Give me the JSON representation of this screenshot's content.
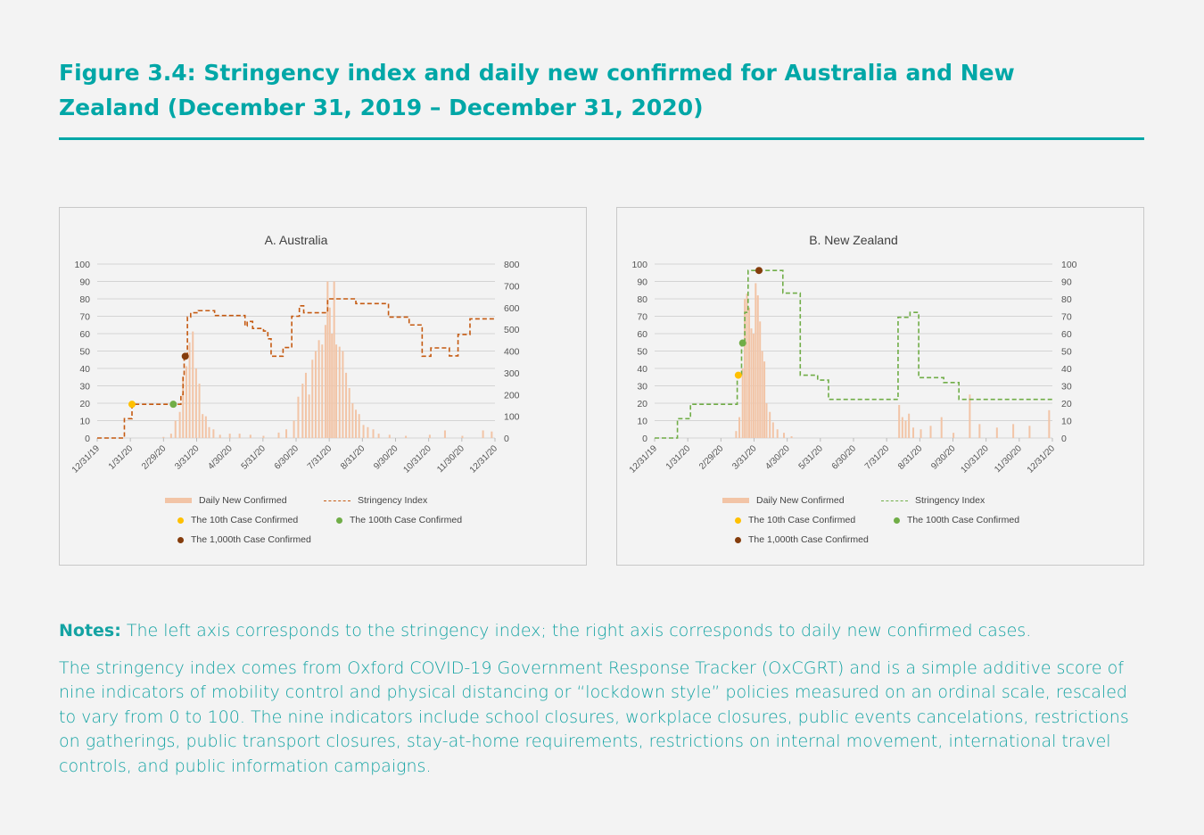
{
  "title": "Figure 3.4: Stringency index and daily new confirmed for Australia and New Zealand (December 31, 2019 – December 31, 2020)",
  "notes": {
    "label": "Notes:",
    "text": " The left axis corresponds to the stringency index; the right axis corresponds to daily new confirmed cases.",
    "paragraph": "The stringency index comes from Oxford COVID-19 Government Response Tracker (OxCGRT) and is a simple additive score of nine indicators of mobility control and physical distancing or “lockdown style” policies measured on an ordinal scale, rescaled to vary from 0 to 100. The nine indicators include school closures, workplace closures, public events cancelations, restrictions on gatherings, public transport closures, stay-at-home requirements, restrictions on internal movement, international travel controls, and public information campaigns."
  },
  "chart_data": [
    {
      "type": "bar+line",
      "title": "A. Australia",
      "x_ticks": [
        "12/31/19",
        "1/31/20",
        "2/29/20",
        "3/31/20",
        "4/30/20",
        "5/31/20",
        "6/30/20",
        "7/31/20",
        "8/31/20",
        "9/30/20",
        "10/31/20",
        "11/30/20",
        "12/31/20"
      ],
      "xlim": [
        "2019-12-31",
        "2020-12-31"
      ],
      "left_ylim": [
        0,
        100
      ],
      "left_ticks": [
        0,
        10,
        20,
        30,
        40,
        50,
        60,
        70,
        80,
        90,
        100
      ],
      "right_ylim": [
        0,
        800
      ],
      "right_ticks": [
        0,
        100,
        200,
        300,
        400,
        500,
        600,
        700,
        800
      ],
      "grid": true,
      "legend": [
        "Daily New Confirmed",
        "Stringency Index",
        "The 10th Case Confirmed",
        "The 100th Case Confirmed",
        "The 1,000th Case Confirmed"
      ],
      "colors": {
        "bars": "#f2c4a6",
        "line": "#c55a11",
        "case10": "#ffc000",
        "case100": "#70ad47",
        "case1000": "#843c0c"
      },
      "stringency_steps": [
        [
          "2019-12-31",
          0
        ],
        [
          "2020-01-25",
          11.1
        ],
        [
          "2020-02-01",
          19.4
        ],
        [
          "2020-03-17",
          25
        ],
        [
          "2020-03-19",
          36.1
        ],
        [
          "2020-03-20",
          47
        ],
        [
          "2020-03-23",
          69.5
        ],
        [
          "2020-03-26",
          72
        ],
        [
          "2020-04-02",
          73.2
        ],
        [
          "2020-04-17",
          70.4
        ],
        [
          "2020-05-15",
          64.4
        ],
        [
          "2020-05-17",
          67
        ],
        [
          "2020-05-22",
          63
        ],
        [
          "2020-06-01",
          61.5
        ],
        [
          "2020-06-05",
          57
        ],
        [
          "2020-06-08",
          47
        ],
        [
          "2020-06-19",
          52
        ],
        [
          "2020-06-27",
          70
        ],
        [
          "2020-07-04",
          76
        ],
        [
          "2020-07-08",
          72
        ],
        [
          "2020-07-30",
          80
        ],
        [
          "2020-08-25",
          77.3
        ],
        [
          "2020-09-24",
          69.5
        ],
        [
          "2020-10-13",
          65
        ],
        [
          "2020-10-25",
          47
        ],
        [
          "2020-11-02",
          51.8
        ],
        [
          "2020-11-19",
          47.2
        ],
        [
          "2020-11-27",
          59.5
        ],
        [
          "2020-12-08",
          68.5
        ],
        [
          "2020-12-31",
          68.5
        ]
      ],
      "daily_new_confirmed": [
        [
          "2020-03-01",
          5
        ],
        [
          "2020-03-08",
          20
        ],
        [
          "2020-03-12",
          80
        ],
        [
          "2020-03-16",
          120
        ],
        [
          "2020-03-19",
          280
        ],
        [
          "2020-03-22",
          330
        ],
        [
          "2020-03-25",
          440
        ],
        [
          "2020-03-28",
          490
        ],
        [
          "2020-03-31",
          320
        ],
        [
          "2020-04-03",
          250
        ],
        [
          "2020-04-06",
          110
        ],
        [
          "2020-04-09",
          100
        ],
        [
          "2020-04-12",
          50
        ],
        [
          "2020-04-16",
          40
        ],
        [
          "2020-04-22",
          15
        ],
        [
          "2020-05-01",
          20
        ],
        [
          "2020-05-10",
          20
        ],
        [
          "2020-05-20",
          15
        ],
        [
          "2020-06-01",
          10
        ],
        [
          "2020-06-15",
          25
        ],
        [
          "2020-06-22",
          40
        ],
        [
          "2020-06-29",
          80
        ],
        [
          "2020-07-03",
          190
        ],
        [
          "2020-07-07",
          250
        ],
        [
          "2020-07-10",
          300
        ],
        [
          "2020-07-13",
          200
        ],
        [
          "2020-07-16",
          360
        ],
        [
          "2020-07-19",
          400
        ],
        [
          "2020-07-22",
          450
        ],
        [
          "2020-07-25",
          430
        ],
        [
          "2020-07-28",
          520
        ],
        [
          "2020-07-30",
          720
        ],
        [
          "2020-08-01",
          600
        ],
        [
          "2020-08-03",
          480
        ],
        [
          "2020-08-05",
          720
        ],
        [
          "2020-08-07",
          430
        ],
        [
          "2020-08-10",
          420
        ],
        [
          "2020-08-13",
          400
        ],
        [
          "2020-08-16",
          300
        ],
        [
          "2020-08-19",
          230
        ],
        [
          "2020-08-22",
          160
        ],
        [
          "2020-08-25",
          130
        ],
        [
          "2020-08-28",
          110
        ],
        [
          "2020-09-01",
          60
        ],
        [
          "2020-09-05",
          50
        ],
        [
          "2020-09-10",
          40
        ],
        [
          "2020-09-15",
          20
        ],
        [
          "2020-09-25",
          15
        ],
        [
          "2020-10-10",
          10
        ],
        [
          "2020-11-01",
          15
        ],
        [
          "2020-11-15",
          35
        ],
        [
          "2020-12-01",
          10
        ],
        [
          "2020-12-20",
          35
        ],
        [
          "2020-12-28",
          30
        ]
      ],
      "markers": [
        [
          "case10",
          "2020-02-01",
          19.4
        ],
        [
          "case100",
          "2020-03-10",
          19.4
        ],
        [
          "case1000",
          "2020-03-21",
          47
        ]
      ]
    },
    {
      "type": "bar+line",
      "title": "B. New Zealand",
      "x_ticks": [
        "12/31/19",
        "1/31/20",
        "2/29/20",
        "3/31/20",
        "4/30/20",
        "5/31/20",
        "6/30/20",
        "7/31/20",
        "8/31/20",
        "9/30/20",
        "10/31/20",
        "11/30/20",
        "12/31/20"
      ],
      "xlim": [
        "2019-12-31",
        "2020-12-31"
      ],
      "left_ylim": [
        0,
        100
      ],
      "left_ticks": [
        0,
        10,
        20,
        30,
        40,
        50,
        60,
        70,
        80,
        90,
        100
      ],
      "right_ylim": [
        0,
        100
      ],
      "right_ticks": [
        0,
        10,
        20,
        30,
        40,
        50,
        60,
        70,
        80,
        90,
        100
      ],
      "grid": true,
      "legend": [
        "Daily New Confirmed",
        "Stringency Index",
        "The 10th Case Confirmed",
        "The 100th Case Confirmed",
        "The 1,000th Case Confirmed"
      ],
      "colors": {
        "bars": "#f2c4a6",
        "line": "#70ad47",
        "case10": "#ffc000",
        "case100": "#70ad47",
        "case1000": "#843c0c"
      },
      "stringency_steps": [
        [
          "2019-12-31",
          0
        ],
        [
          "2020-01-21",
          11.1
        ],
        [
          "2020-02-02",
          19.4
        ],
        [
          "2020-03-16",
          36.1
        ],
        [
          "2020-03-20",
          54.6
        ],
        [
          "2020-03-23",
          72.2
        ],
        [
          "2020-03-26",
          96.3
        ],
        [
          "2020-04-27",
          83.3
        ],
        [
          "2020-05-13",
          36.1
        ],
        [
          "2020-05-29",
          33.3
        ],
        [
          "2020-06-08",
          22.2
        ],
        [
          "2020-08-11",
          69.4
        ],
        [
          "2020-08-22",
          72.2
        ],
        [
          "2020-08-30",
          34.7
        ],
        [
          "2020-09-22",
          31.9
        ],
        [
          "2020-10-06",
          22.2
        ],
        [
          "2020-12-31",
          22.2
        ]
      ],
      "daily_new_confirmed": [
        [
          "2020-03-15",
          4
        ],
        [
          "2020-03-18",
          12
        ],
        [
          "2020-03-21",
          40
        ],
        [
          "2020-03-23",
          80
        ],
        [
          "2020-03-25",
          83
        ],
        [
          "2020-03-27",
          75
        ],
        [
          "2020-03-29",
          63
        ],
        [
          "2020-03-31",
          60
        ],
        [
          "2020-04-02",
          89
        ],
        [
          "2020-04-04",
          82
        ],
        [
          "2020-04-06",
          67
        ],
        [
          "2020-04-08",
          50
        ],
        [
          "2020-04-10",
          44
        ],
        [
          "2020-04-12",
          20
        ],
        [
          "2020-04-15",
          15
        ],
        [
          "2020-04-18",
          9
        ],
        [
          "2020-04-22",
          5
        ],
        [
          "2020-04-28",
          3
        ],
        [
          "2020-05-05",
          1
        ],
        [
          "2020-08-12",
          19
        ],
        [
          "2020-08-15",
          12
        ],
        [
          "2020-08-18",
          10
        ],
        [
          "2020-08-21",
          14
        ],
        [
          "2020-08-25",
          6
        ],
        [
          "2020-09-01",
          5
        ],
        [
          "2020-09-10",
          7
        ],
        [
          "2020-09-20",
          12
        ],
        [
          "2020-10-01",
          3
        ],
        [
          "2020-10-16",
          25
        ],
        [
          "2020-10-25",
          8
        ],
        [
          "2020-11-10",
          6
        ],
        [
          "2020-11-25",
          8
        ],
        [
          "2020-12-10",
          7
        ],
        [
          "2020-12-28",
          16
        ]
      ],
      "markers": [
        [
          "case10",
          "2020-03-17",
          36.1
        ],
        [
          "case100",
          "2020-03-21",
          54.6
        ],
        [
          "case1000",
          "2020-04-05",
          96.3
        ]
      ]
    }
  ]
}
